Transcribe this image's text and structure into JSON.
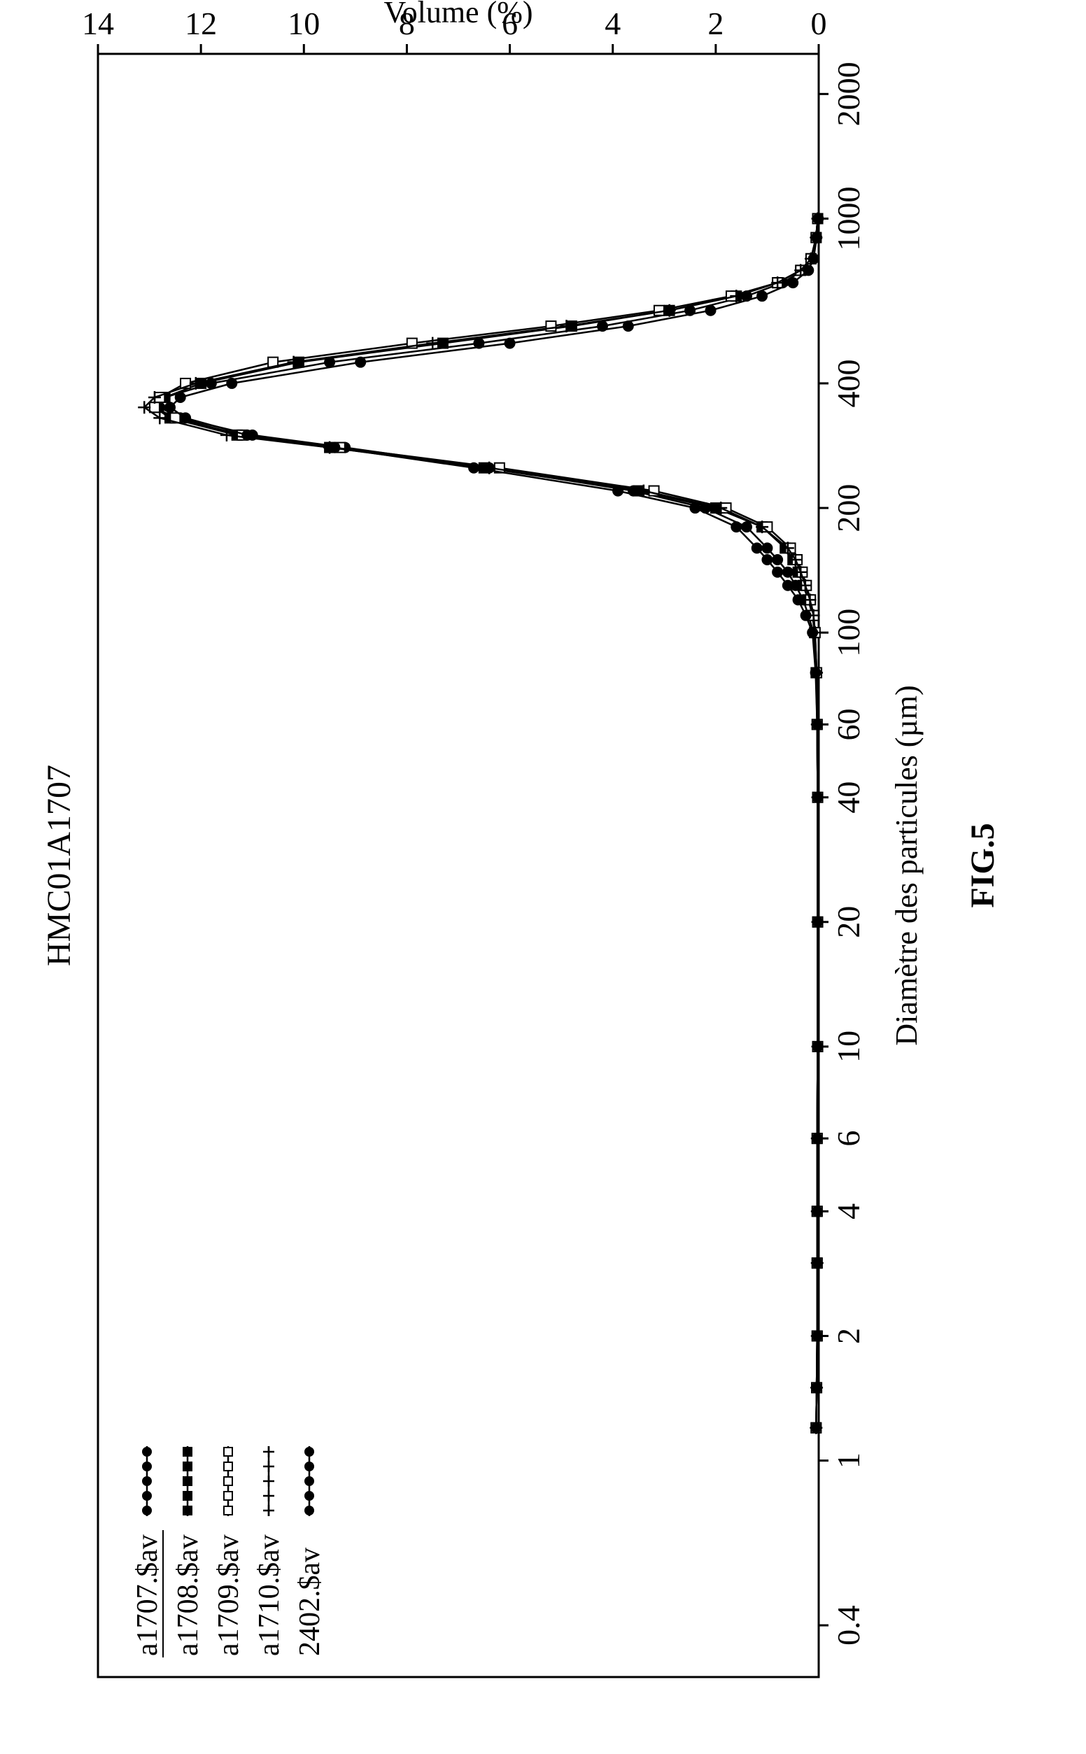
{
  "chart_data": {
    "type": "line",
    "title": "HMC01A1707",
    "xlabel": "Diamètre des particules (µm)",
    "ylabel": "Volume (%)",
    "caption": "FIG.5",
    "x_scale": "log",
    "xlim": [
      0.3,
      2500
    ],
    "ylim": [
      0,
      14
    ],
    "x_ticks": [
      "0.4",
      "1",
      "2",
      "4",
      "6",
      "10",
      "20",
      "40",
      "60",
      "100",
      "200",
      "400",
      "1000",
      "2000"
    ],
    "y_ticks": [
      "0",
      "2",
      "4",
      "6",
      "8",
      "10",
      "12",
      "14"
    ],
    "grid": false,
    "legend_position": "top-left",
    "x": [
      1.2,
      1.5,
      2,
      3,
      4,
      6,
      10,
      20,
      40,
      60,
      80,
      100,
      110,
      120,
      130,
      140,
      150,
      160,
      180,
      200,
      220,
      250,
      280,
      300,
      330,
      350,
      370,
      400,
      450,
      500,
      550,
      600,
      650,
      700,
      750,
      800,
      900,
      1000
    ],
    "series": [
      {
        "name": "a1707.$av",
        "values": [
          0.05,
          0.04,
          0.03,
          0.03,
          0.03,
          0.03,
          0.02,
          0.02,
          0.02,
          0.03,
          0.05,
          0.1,
          0.2,
          0.3,
          0.45,
          0.6,
          0.8,
          1.0,
          1.4,
          2.2,
          3.6,
          6.4,
          9.2,
          11.0,
          12.4,
          12.8,
          12.7,
          11.8,
          9.5,
          6.6,
          4.2,
          2.5,
          1.4,
          0.7,
          0.3,
          0.15,
          0.05,
          0.02
        ]
      },
      {
        "name": "a1708.$av",
        "values": [
          0.05,
          0.04,
          0.03,
          0.03,
          0.03,
          0.03,
          0.02,
          0.02,
          0.02,
          0.03,
          0.05,
          0.08,
          0.12,
          0.2,
          0.3,
          0.4,
          0.5,
          0.65,
          1.1,
          2.0,
          3.5,
          6.5,
          9.5,
          11.3,
          12.6,
          12.9,
          12.7,
          12.0,
          10.1,
          7.3,
          4.8,
          2.9,
          1.6,
          0.8,
          0.35,
          0.15,
          0.05,
          0.02
        ]
      },
      {
        "name": "a1709.$av",
        "values": [
          0.05,
          0.04,
          0.03,
          0.03,
          0.03,
          0.03,
          0.02,
          0.02,
          0.02,
          0.03,
          0.04,
          0.07,
          0.1,
          0.16,
          0.24,
          0.32,
          0.42,
          0.55,
          1.0,
          1.8,
          3.2,
          6.2,
          9.3,
          11.2,
          12.5,
          12.9,
          12.8,
          12.3,
          10.6,
          7.9,
          5.2,
          3.1,
          1.7,
          0.8,
          0.35,
          0.15,
          0.05,
          0.02
        ]
      },
      {
        "name": "a1710.$av",
        "values": [
          0.05,
          0.04,
          0.03,
          0.03,
          0.03,
          0.03,
          0.02,
          0.02,
          0.02,
          0.03,
          0.04,
          0.07,
          0.1,
          0.17,
          0.26,
          0.35,
          0.45,
          0.6,
          1.1,
          1.9,
          3.4,
          6.4,
          9.5,
          11.5,
          12.8,
          13.1,
          12.9,
          12.1,
          10.2,
          7.5,
          4.9,
          2.9,
          1.6,
          0.8,
          0.35,
          0.15,
          0.05,
          0.02
        ]
      },
      {
        "name": "2402.$av",
        "values": [
          0.05,
          0.04,
          0.03,
          0.03,
          0.03,
          0.03,
          0.02,
          0.02,
          0.02,
          0.03,
          0.06,
          0.12,
          0.25,
          0.4,
          0.6,
          0.8,
          1.0,
          1.2,
          1.6,
          2.4,
          3.9,
          6.7,
          9.4,
          11.1,
          12.3,
          12.6,
          12.4,
          11.4,
          8.9,
          6.0,
          3.7,
          2.1,
          1.1,
          0.5,
          0.2,
          0.1,
          0.04,
          0.01
        ]
      }
    ]
  }
}
